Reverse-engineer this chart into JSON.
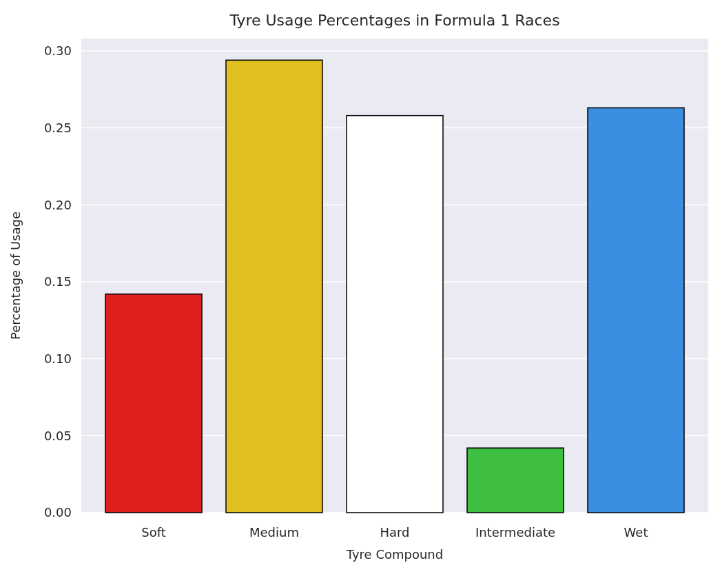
{
  "chart_data": {
    "type": "bar",
    "title": "Tyre Usage Percentages in Formula 1 Races",
    "xlabel": "Tyre Compound",
    "ylabel": "Percentage of Usage",
    "categories": [
      "Soft",
      "Medium",
      "Hard",
      "Intermediate",
      "Wet"
    ],
    "values": [
      0.142,
      0.294,
      0.258,
      0.042,
      0.263
    ],
    "colors": [
      "#e01f1f",
      "#dfc020",
      "#ffffff",
      "#3fbf3f",
      "#3a8fe0"
    ],
    "ylim": [
      0,
      0.308
    ],
    "yticks": [
      {
        "value": 0,
        "label": "0.00"
      },
      {
        "value": 0.05,
        "label": "0.05"
      },
      {
        "value": 0.1,
        "label": "0.10"
      },
      {
        "value": 0.15,
        "label": "0.15"
      },
      {
        "value": 0.2,
        "label": "0.20"
      },
      {
        "value": 0.25,
        "label": "0.25"
      },
      {
        "value": 0.3,
        "label": "0.30"
      }
    ],
    "grid": "y"
  }
}
